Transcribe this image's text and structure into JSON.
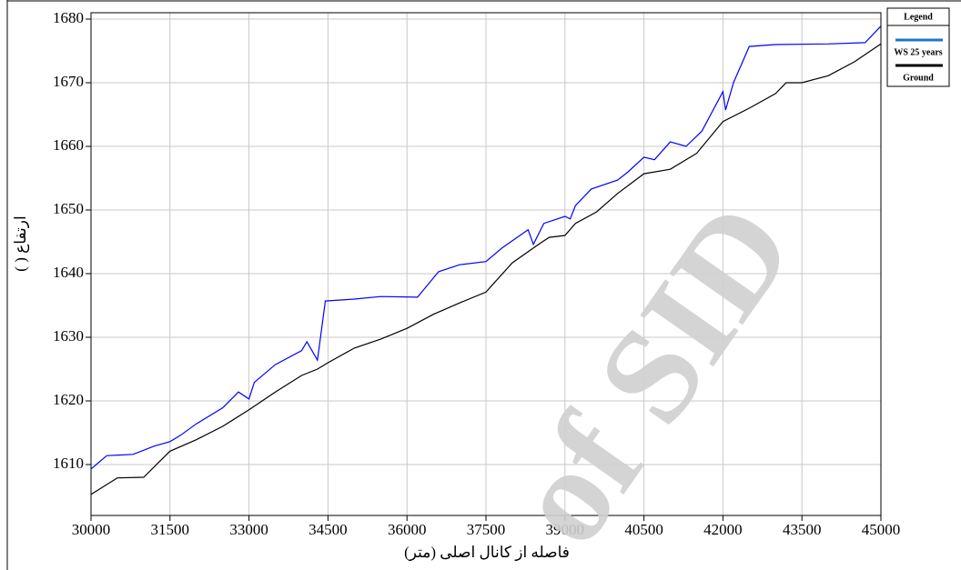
{
  "chart_data": {
    "type": "line",
    "xlabel": "فاصله از کانال اصلی (متر)",
    "ylabel": "ارتفاع ( )",
    "legend_title": "Legend",
    "legend": "top-right-outside",
    "grid": true,
    "watermark": "of SID",
    "xlim": [
      30000,
      45000
    ],
    "xticks": [
      30000,
      31500,
      33000,
      34500,
      36000,
      37500,
      39000,
      40500,
      42000,
      43500,
      45000
    ],
    "ylim": [
      1602,
      1681
    ],
    "yticks": [
      1610,
      1620,
      1630,
      1640,
      1650,
      1660,
      1670,
      1680
    ],
    "series": [
      {
        "name": "WS 25 years",
        "color": "#0000ff",
        "legend_color": "#1f77c8",
        "x": [
          30000,
          30300,
          30800,
          31200,
          31500,
          31700,
          32000,
          32500,
          32800,
          33000,
          33100,
          33500,
          34000,
          34100,
          34300,
          34450,
          35000,
          35500,
          36200,
          36600,
          37000,
          37500,
          37800,
          38300,
          38400,
          38600,
          39000,
          39100,
          39200,
          39500,
          40000,
          40200,
          40500,
          40700,
          41000,
          41300,
          41600,
          42000,
          42050,
          42200,
          42500,
          43000,
          44000,
          44700,
          45000
        ],
        "values": [
          1609.3,
          1611.4,
          1611.6,
          1612.9,
          1613.6,
          1614.6,
          1616.4,
          1618.9,
          1621.4,
          1620.3,
          1622.9,
          1625.7,
          1627.9,
          1629.3,
          1626.4,
          1635.7,
          1636,
          1636.4,
          1636.3,
          1640.3,
          1641.4,
          1641.9,
          1644,
          1646.9,
          1644.6,
          1647.9,
          1649,
          1648.6,
          1650.7,
          1653.3,
          1654.7,
          1656,
          1658.3,
          1657.9,
          1660.7,
          1660,
          1662.4,
          1668.6,
          1665.7,
          1670,
          1675.7,
          1676,
          1676.1,
          1676.3,
          1678.9
        ]
      },
      {
        "name": "Ground",
        "color": "#000000",
        "legend_color": "#000000",
        "x": [
          30000,
          30500,
          31000,
          31500,
          32000,
          32500,
          33000,
          33500,
          34000,
          34300,
          34500,
          35000,
          35500,
          36000,
          36500,
          37000,
          37500,
          38000,
          38500,
          38700,
          39000,
          39200,
          39600,
          40000,
          40500,
          41000,
          41500,
          42000,
          42500,
          43000,
          43200,
          43500,
          44000,
          44500,
          45000
        ],
        "values": [
          1605.3,
          1607.9,
          1608,
          1612.1,
          1613.9,
          1616,
          1618.6,
          1621.4,
          1624,
          1625,
          1626,
          1628.3,
          1629.7,
          1631.4,
          1633.6,
          1635.4,
          1637.1,
          1641.7,
          1644.6,
          1645.7,
          1646,
          1647.9,
          1649.7,
          1652.6,
          1655.7,
          1656.4,
          1658.9,
          1663.9,
          1666,
          1668.3,
          1670,
          1670,
          1671.1,
          1673.3,
          1676.1
        ]
      }
    ]
  }
}
